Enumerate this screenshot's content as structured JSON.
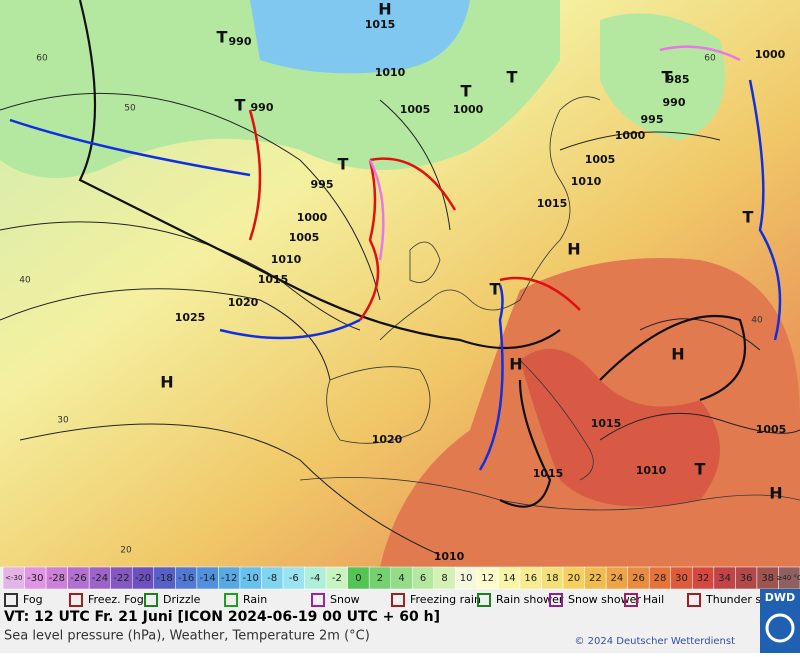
{
  "map": {
    "pressure_labels": [
      "1015",
      "990",
      "1010",
      "1005",
      "1000",
      "990",
      "995",
      "1000",
      "1005",
      "1010",
      "1015",
      "1020",
      "1025",
      "1020",
      "1015",
      "1010",
      "1005",
      "1000",
      "995",
      "990",
      "985",
      "1000",
      "1015",
      "1010",
      "1015",
      "1005",
      "1010"
    ],
    "centers": [
      "H",
      "T",
      "T",
      "T",
      "T",
      "T",
      "T",
      "H",
      "T",
      "H",
      "H",
      "H",
      "T",
      "H",
      "T"
    ],
    "latitudes": [
      "60",
      "50",
      "40",
      "30",
      "20",
      "60",
      "40"
    ]
  },
  "scale": {
    "labels": [
      "<-30",
      "-30",
      "-28",
      "-26",
      "-24",
      "-22",
      "-20",
      "-18",
      "-16",
      "-14",
      "-12",
      "-10",
      "-8",
      "-6",
      "-4",
      "-2",
      "0",
      "2",
      "4",
      "6",
      "8",
      "10",
      "12",
      "14",
      "16",
      "18",
      "20",
      "22",
      "24",
      "26",
      "28",
      "30",
      "32",
      "34",
      "36",
      "38",
      "≥40 °C"
    ],
    "colors": [
      "#e4b4e8",
      "#e094e4",
      "#cc80d8",
      "#b470d0",
      "#9c64c8",
      "#8458c0",
      "#6c50c0",
      "#5860c8",
      "#5078d4",
      "#5090dc",
      "#58a8e4",
      "#68c0ec",
      "#80d4f0",
      "#98e4f0",
      "#b0eedc",
      "#c8f4c0",
      "#54c454",
      "#74d070",
      "#94dc88",
      "#b4e8a0",
      "#d4f0b4",
      "#f4f8dc",
      "#fcfccc",
      "#f8f4a8",
      "#f8ec90",
      "#f4e078",
      "#f4d060",
      "#f0bc50",
      "#eca444",
      "#e88c40",
      "#e4743c",
      "#dc5c3c",
      "#d44840",
      "#c04448",
      "#b0484c",
      "#a05450",
      "#906060"
    ]
  },
  "legend": [
    "Fog",
    "Freez. Fog",
    "Drizzle",
    "Rain",
    "Snow",
    "Freezing rain",
    "Rain shower",
    "Snow shower",
    "Hail",
    "Thunder storm"
  ],
  "footer": {
    "valid": "VT: 12 UTC Fr.  21 Juni [ICON 2024-06-19  00 UTC + 60 h]",
    "subtitle": "Sea level pressure (hPa), Weather, Temperature 2m (°C)",
    "copyright": "© 2024 Deutscher Wetterdienst",
    "logo": "DWD"
  }
}
